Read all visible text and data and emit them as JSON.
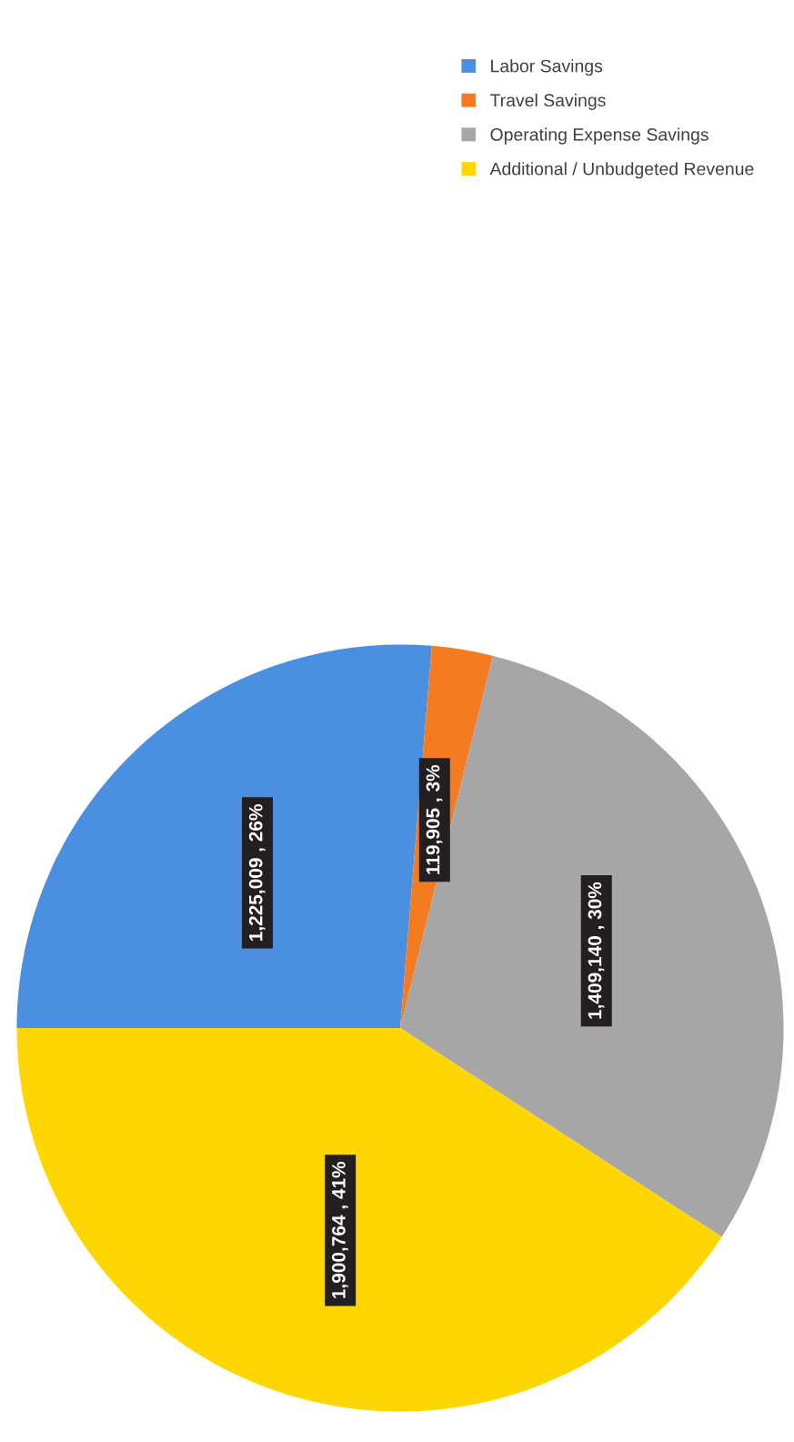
{
  "chart_data": {
    "type": "pie",
    "categories": [
      "Labor Savings",
      "Travel Savings",
      "Operating Expense Savings",
      "Additional / Unbudgeted Revenue"
    ],
    "values": [
      1225009,
      119905,
      1409140,
      1900764
    ],
    "colors": [
      "#4a8fe0",
      "#f47b20",
      "#a6a6a6",
      "#ffd700"
    ],
    "value_labels": [
      "1,225,009 , 26%",
      "119,905 , 3%",
      "1,409,140 , 30%",
      "1,900,764 , 41%"
    ],
    "legend": "top right"
  }
}
